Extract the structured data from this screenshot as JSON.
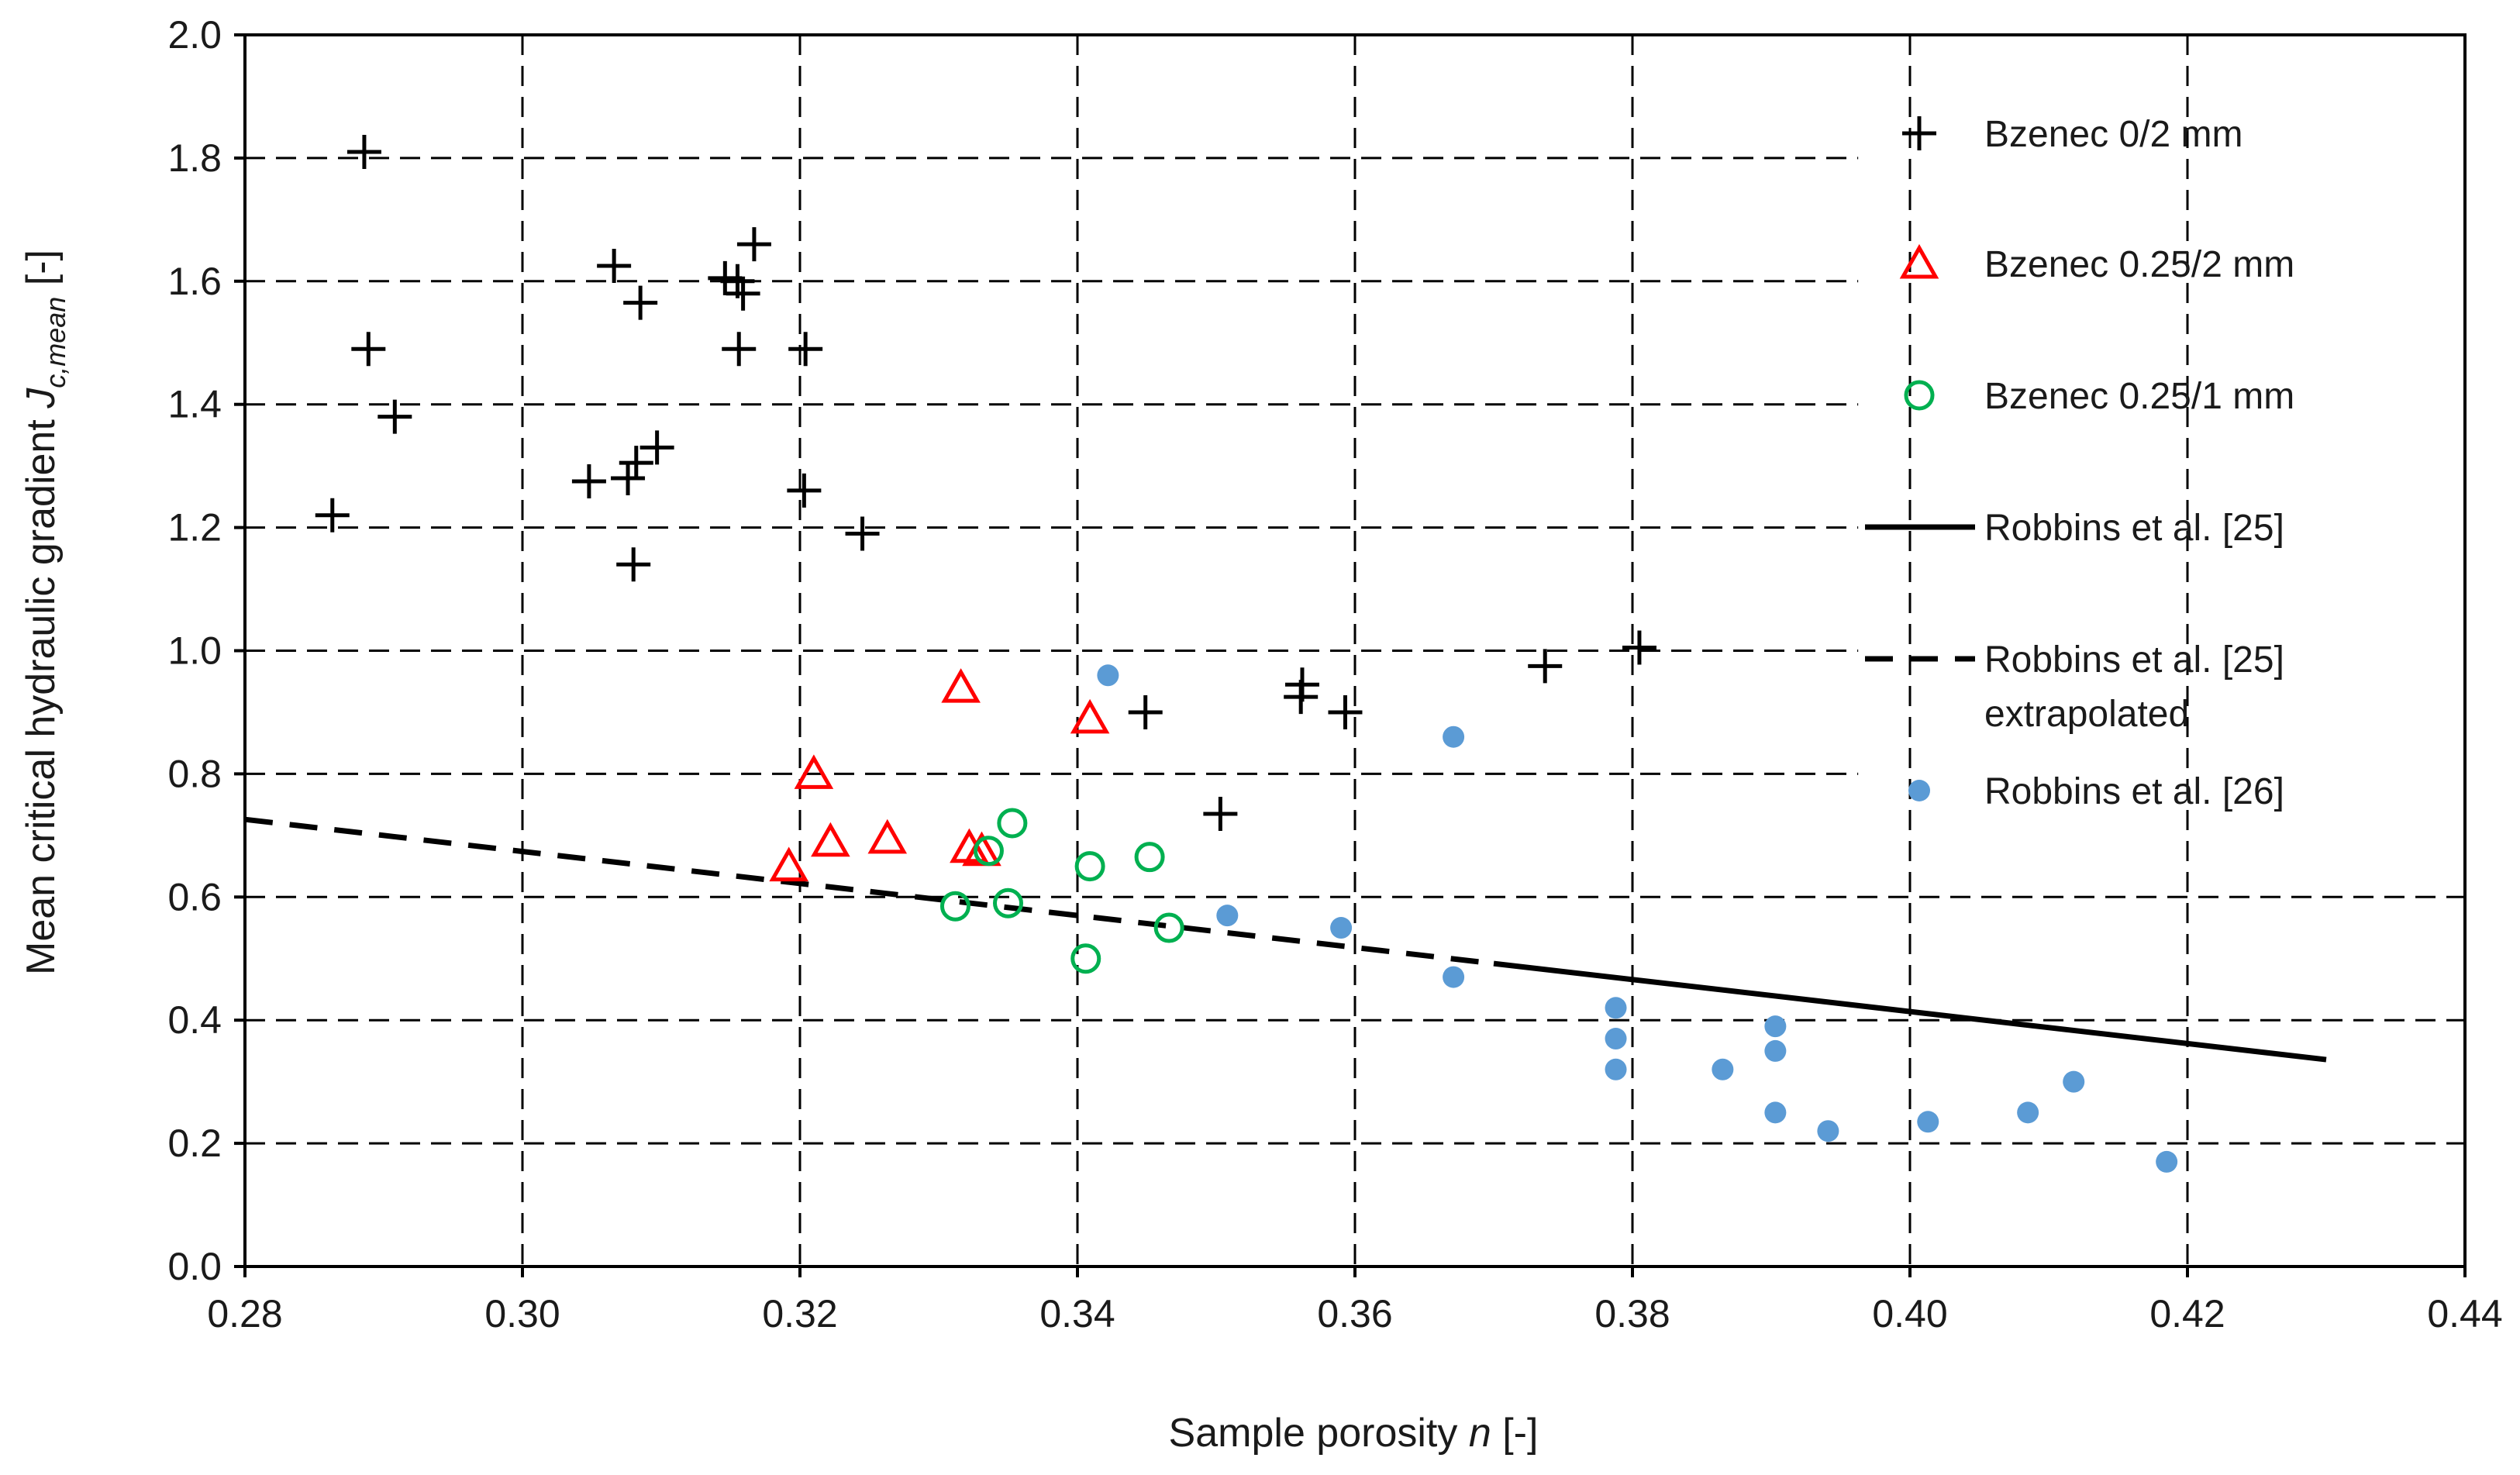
{
  "chart_data": {
    "type": "scatter",
    "title": "",
    "xlabel": {
      "main": "Sample porosity ",
      "var": "n",
      "unit": " [-]"
    },
    "ylabel": {
      "main": "Mean critical hydraulic gradient ",
      "var": "J",
      "sub": "c,mean",
      "unit": " [-]"
    },
    "xlim": [
      0.28,
      0.44
    ],
    "ylim": [
      0.0,
      2.0
    ],
    "x_ticks": [
      0.28,
      0.3,
      0.32,
      0.34,
      0.36,
      0.38,
      0.4,
      0.42,
      0.44
    ],
    "y_ticks": [
      0.0,
      0.2,
      0.4,
      0.6,
      0.8,
      1.0,
      1.2,
      1.4,
      1.6,
      1.8,
      2.0
    ],
    "x_tick_labels": [
      "0.28",
      "0.30",
      "0.32",
      "0.34",
      "0.36",
      "0.38",
      "0.40",
      "0.42",
      "0.44"
    ],
    "y_tick_labels": [
      "0.0",
      "0.2",
      "0.4",
      "0.6",
      "0.8",
      "1.0",
      "1.2",
      "1.4",
      "1.6",
      "1.8",
      "2.0"
    ],
    "grid": true,
    "legend_position": "right",
    "series": [
      {
        "name": "Bzenec 0/2 mm",
        "marker": "plus",
        "color": "#000000",
        "points": [
          [
            0.2886,
            1.81
          ],
          [
            0.2889,
            1.49
          ],
          [
            0.2908,
            1.38
          ],
          [
            0.2863,
            1.22
          ],
          [
            0.3066,
            1.625
          ],
          [
            0.3085,
            1.565
          ],
          [
            0.3146,
            1.605
          ],
          [
            0.3155,
            1.6
          ],
          [
            0.3159,
            1.58
          ],
          [
            0.3167,
            1.66
          ],
          [
            0.3156,
            1.49
          ],
          [
            0.3204,
            1.49
          ],
          [
            0.3048,
            1.275
          ],
          [
            0.3076,
            1.28
          ],
          [
            0.3082,
            1.305
          ],
          [
            0.3097,
            1.33
          ],
          [
            0.308,
            1.14
          ],
          [
            0.3203,
            1.26
          ],
          [
            0.3245,
            1.19
          ],
          [
            0.3449,
            0.9
          ],
          [
            0.3503,
            0.735
          ],
          [
            0.3562,
            0.945
          ],
          [
            0.3561,
            0.925
          ],
          [
            0.3593,
            0.9
          ],
          [
            0.3737,
            0.975
          ],
          [
            0.3805,
            1.005
          ]
        ]
      },
      {
        "name": "Bzenec 0.25/2 mm",
        "marker": "triangle",
        "color": "#ff0000",
        "points": [
          [
            0.3316,
            0.94
          ],
          [
            0.3409,
            0.89
          ],
          [
            0.321,
            0.8
          ],
          [
            0.3192,
            0.65
          ],
          [
            0.3222,
            0.69
          ],
          [
            0.3263,
            0.695
          ],
          [
            0.3322,
            0.68
          ],
          [
            0.3331,
            0.675
          ]
        ]
      },
      {
        "name": "Bzenec 0.25/1 mm",
        "marker": "circle",
        "color": "#00b050",
        "points": [
          [
            0.3353,
            0.72
          ],
          [
            0.3336,
            0.675
          ],
          [
            0.3409,
            0.65
          ],
          [
            0.3452,
            0.665
          ],
          [
            0.3312,
            0.585
          ],
          [
            0.335,
            0.59
          ],
          [
            0.3466,
            0.55
          ],
          [
            0.3406,
            0.5
          ]
        ]
      },
      {
        "name": "Robbins et al. [25]",
        "marker": "line",
        "style": "solid",
        "color": "#000000",
        "x": [
          0.37,
          0.43
        ],
        "y": [
          0.492,
          0.336
        ]
      },
      {
        "name": "Robbins et al. [25] extrapolated",
        "label_lines": [
          "Robbins et al. [25]",
          "extrapolated"
        ],
        "marker": "line",
        "style": "dashed",
        "color": "#000000",
        "x": [
          0.28,
          0.37
        ],
        "y": [
          0.726,
          0.492
        ]
      },
      {
        "name": "Robbins et al. [26]",
        "marker": "dot",
        "color": "#5b9bd5",
        "points": [
          [
            0.3422,
            0.96
          ],
          [
            0.3671,
            0.86
          ],
          [
            0.3508,
            0.57
          ],
          [
            0.359,
            0.55
          ],
          [
            0.3671,
            0.47
          ],
          [
            0.3788,
            0.42
          ],
          [
            0.3788,
            0.37
          ],
          [
            0.3788,
            0.32
          ],
          [
            0.3865,
            0.32
          ],
          [
            0.3903,
            0.39
          ],
          [
            0.3903,
            0.35
          ],
          [
            0.3903,
            0.25
          ],
          [
            0.3941,
            0.22
          ],
          [
            0.4013,
            0.235
          ],
          [
            0.4085,
            0.25
          ],
          [
            0.4118,
            0.3
          ],
          [
            0.4185,
            0.17
          ]
        ]
      }
    ]
  }
}
